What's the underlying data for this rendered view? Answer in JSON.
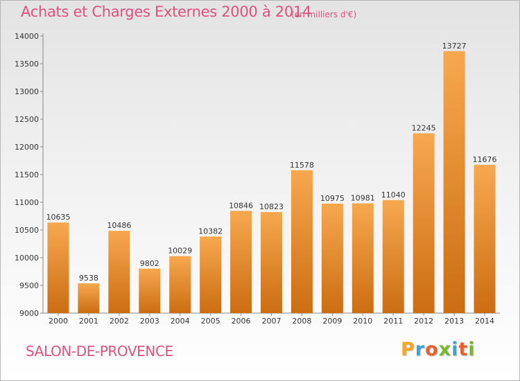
{
  "title": "Achats et Charges Externes 2000 à 2014",
  "subtitle": "(en milliers d'€)",
  "city": "SALON-DE-PROVENCE",
  "brand": {
    "letters": [
      "P",
      "r",
      "o",
      "x",
      "i",
      "t",
      "i"
    ],
    "colors": [
      "#f5a623",
      "#3aa3dc",
      "#e8612c",
      "#76b82a",
      "#3aa3dc",
      "#e8612c",
      "#76b82a"
    ]
  },
  "colors": {
    "bar_light": "#f7a84f",
    "bar_dark": "#cc6d12",
    "title": "#e0507e"
  },
  "chart_data": {
    "type": "bar",
    "categories": [
      "2000",
      "2001",
      "2002",
      "2003",
      "2004",
      "2005",
      "2006",
      "2007",
      "2008",
      "2009",
      "2010",
      "2011",
      "2012",
      "2013",
      "2014"
    ],
    "values": [
      10635,
      9538,
      10486,
      9802,
      10029,
      10382,
      10846,
      10823,
      11578,
      10975,
      10981,
      11040,
      12245,
      13727,
      11676
    ],
    "value_labels": [
      "10635",
      "9538",
      "10486",
      "9802",
      "10029",
      "10382",
      "10846",
      "10823",
      "11578",
      "10975",
      "10981",
      "11040",
      "12245",
      "13727",
      "11676"
    ],
    "title": "Achats et Charges Externes 2000 à 2014",
    "subtitle": "(en milliers d'€)",
    "xlabel": "",
    "ylabel": "",
    "ylim": [
      9000,
      14000
    ],
    "yticks": [
      9000,
      9500,
      10000,
      10500,
      11000,
      11500,
      12000,
      12500,
      13000,
      13500,
      14000
    ],
    "ytick_labels": [
      "9000",
      "9500",
      "10000",
      "10500",
      "11000",
      "11500",
      "12000",
      "12500",
      "13000",
      "13500",
      "14000"
    ],
    "grid": false,
    "legend": "none"
  }
}
